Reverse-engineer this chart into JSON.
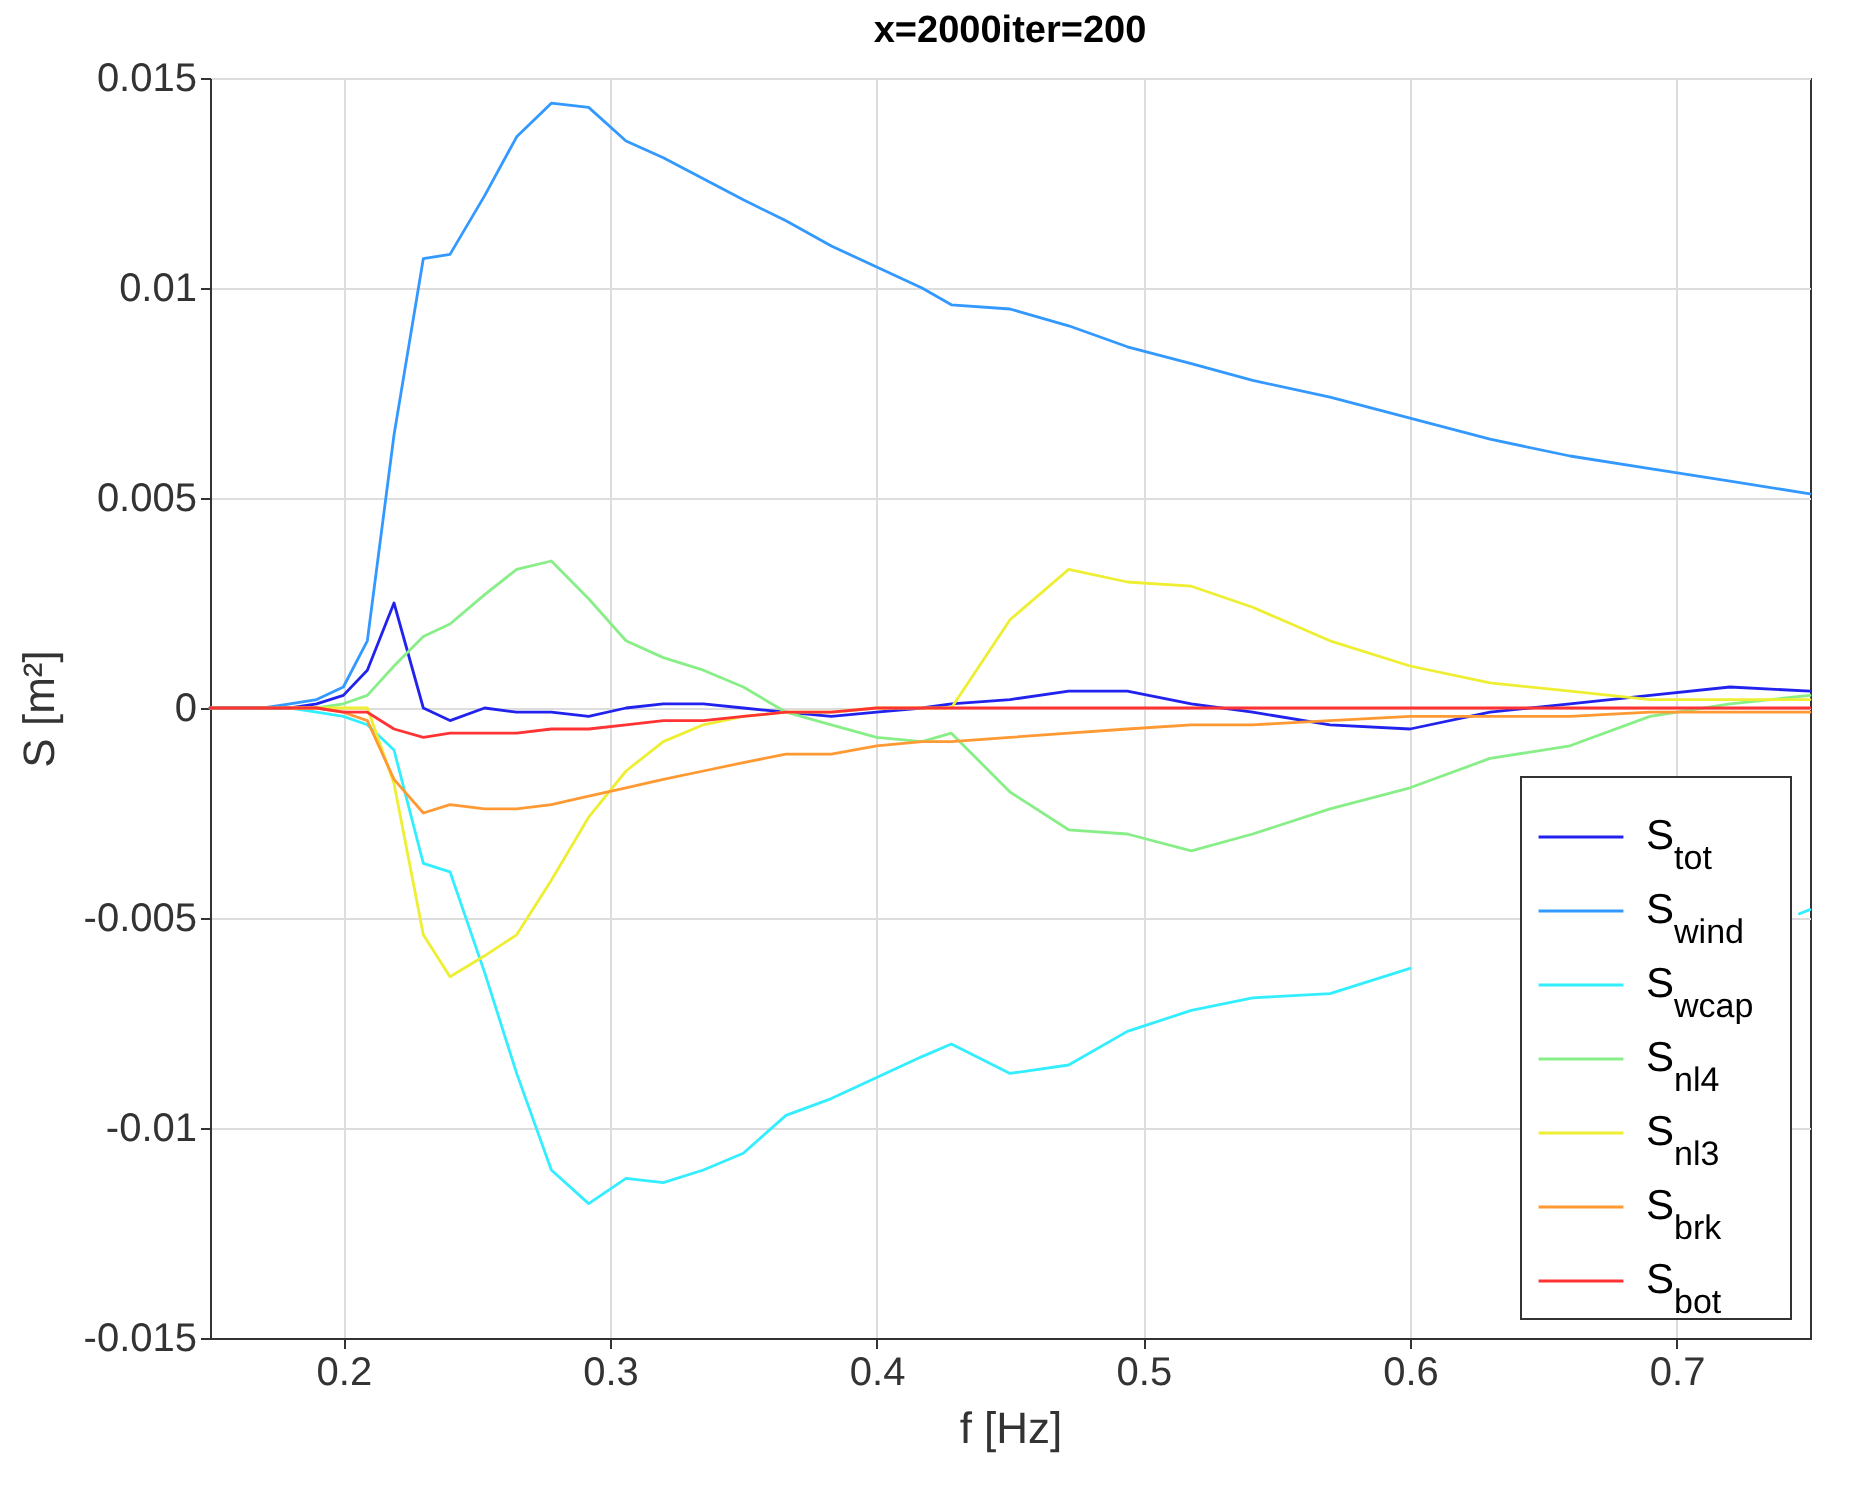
{
  "chart_data": {
    "type": "line",
    "title": "x=2000iter=200",
    "xlabel": "f [Hz]",
    "ylabel": "S [m²]",
    "x": [
      0.15,
      0.17,
      0.18,
      0.19,
      0.2,
      0.209,
      0.219,
      0.23,
      0.24,
      0.253,
      0.265,
      0.278,
      0.292,
      0.306,
      0.32,
      0.335,
      0.35,
      0.366,
      0.383,
      0.4,
      0.417,
      0.428,
      0.45,
      0.472,
      0.494,
      0.518,
      0.541,
      0.57,
      0.6,
      0.63,
      0.66,
      0.69,
      0.72,
      0.75
    ],
    "xlim": [
      0.15,
      0.75
    ],
    "xticks": [
      0.2,
      0.3,
      0.4,
      0.5,
      0.6,
      0.7
    ],
    "ylim": [
      -0.015,
      0.015
    ],
    "yticks": [
      -0.015,
      -0.01,
      -0.005,
      0,
      0.005,
      0.01,
      0.015
    ],
    "grid": true,
    "legend": "bottom right",
    "line_style": "solid",
    "marker": "none",
    "series": [
      {
        "name": "S$_{tot}$",
        "color": "#2222ee",
        "values": [
          0,
          0,
          0,
          0.0001,
          0.0003,
          0.0009,
          0.0025,
          0,
          -0.0003,
          0,
          -0.0001,
          -0.0001,
          -0.0002,
          0,
          0.0001,
          0.0001,
          0,
          -0.0001,
          -0.0002,
          -0.0001,
          0,
          0.0001,
          0.0002,
          0.0004,
          0.0004,
          0.0001,
          -0.0001,
          -0.0004,
          -0.0005,
          -0.0001,
          0.0001,
          0.0003,
          0.0005,
          0.0004
        ]
      },
      {
        "name": "S$_{wind}$",
        "color": "#3399ff",
        "values": [
          0,
          0,
          0.0001,
          0.0002,
          0.0005,
          0.0016,
          0.0065,
          0.0107,
          0.0108,
          0.0122,
          0.0136,
          0.0144,
          0.0143,
          0.0135,
          0.0131,
          0.0126,
          0.0121,
          0.0116,
          0.011,
          0.0105,
          0.01,
          0.0096,
          0.0095,
          0.0091,
          0.0086,
          0.0082,
          0.0078,
          0.0074,
          0.0069,
          0.0064,
          0.006,
          0.0057,
          0.0054,
          0.0051
        ]
      },
      {
        "name": "S$_{wcap}$",
        "color": "#33eeff",
        "x": [
          0.15,
          0.17,
          0.18,
          0.19,
          0.2,
          0.209,
          0.219,
          0.23,
          0.24,
          0.253,
          0.265,
          0.278,
          0.292,
          0.306,
          0.32,
          0.335,
          0.35,
          0.366,
          0.383,
          0.4,
          0.417,
          0.428,
          0.45,
          0.472,
          0.494,
          0.518,
          0.541,
          0.57,
          0.6,
          0.63,
          0.66,
          0.69,
          0.746,
          0.75
        ],
        "values": [
          0,
          0,
          0,
          -0.0001,
          -0.0002,
          -0.0004,
          -0.001,
          -0.0037,
          -0.0039,
          -0.0063,
          -0.0087,
          -0.011,
          -0.0118,
          -0.0112,
          -0.0113,
          -0.011,
          -0.0106,
          -0.0097,
          -0.0093,
          -0.0088,
          -0.0083,
          -0.008,
          -0.0087,
          -0.0085,
          -0.0077,
          -0.0072,
          -0.0069,
          -0.0068,
          -0.0062,
          null,
          null,
          null,
          -0.0049,
          -0.0048
        ]
      },
      {
        "name": "S$_{nl4}$",
        "color": "#88ee88",
        "values": [
          null,
          null,
          0,
          0,
          0.0001,
          0.0003,
          0.001,
          0.0017,
          0.002,
          0.0027,
          0.0033,
          0.0035,
          0.0026,
          0.0016,
          0.0012,
          0.0009,
          0.0005,
          -0.0001,
          -0.0004,
          -0.0007,
          -0.0008,
          -0.0006,
          -0.002,
          -0.0029,
          -0.003,
          -0.0034,
          -0.003,
          -0.0024,
          -0.0019,
          -0.0012,
          -0.0009,
          -0.0002,
          0.0001,
          0.0003
        ]
      },
      {
        "name": "S$_{nl3}$",
        "color": "#eeee33",
        "values": [
          null,
          null,
          0,
          0,
          0,
          0,
          -0.0018,
          -0.0054,
          -0.0064,
          -0.0059,
          -0.0054,
          -0.0041,
          -0.0026,
          -0.0015,
          -0.0008,
          -0.0004,
          -0.0002,
          -0.0001,
          -0.0001,
          0,
          0,
          0,
          0.0021,
          0.0033,
          0.003,
          0.0029,
          0.0024,
          0.0016,
          0.001,
          0.0006,
          0.0004,
          0.0002,
          0.0002,
          0.0002
        ]
      },
      {
        "name": "S$_{brk}$",
        "color": "#ff9933",
        "values": [
          0,
          0,
          0,
          0,
          -0.0001,
          -0.0003,
          -0.0017,
          -0.0025,
          -0.0023,
          -0.0024,
          -0.0024,
          -0.0023,
          -0.0021,
          -0.0019,
          -0.0017,
          -0.0015,
          -0.0013,
          -0.0011,
          -0.0011,
          -0.0009,
          -0.0008,
          -0.0008,
          -0.0007,
          -0.0006,
          -0.0005,
          -0.0004,
          -0.0004,
          -0.0003,
          -0.0002,
          -0.0002,
          -0.0002,
          -0.0001,
          -0.0001,
          -0.0001
        ]
      },
      {
        "name": "S$_{bot}$",
        "color": "#ff3333",
        "values": [
          0,
          0,
          0,
          0,
          -0.0001,
          -0.0001,
          -0.0005,
          -0.0007,
          -0.0006,
          -0.0006,
          -0.0006,
          -0.0005,
          -0.0005,
          -0.0004,
          -0.0003,
          -0.0003,
          -0.0002,
          -0.0001,
          -0.0001,
          0,
          0,
          0,
          0,
          0,
          0,
          0,
          0,
          0,
          0,
          0,
          0,
          0,
          0,
          0
        ]
      }
    ]
  }
}
